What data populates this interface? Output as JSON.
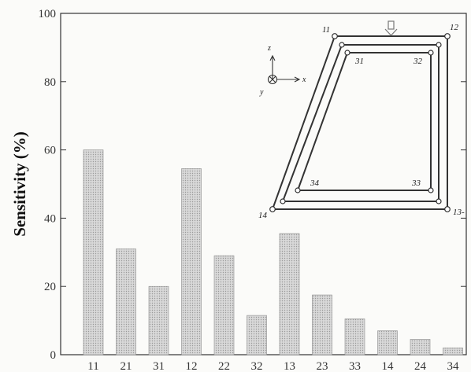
{
  "chart_data": {
    "type": "bar",
    "categories": [
      "11",
      "21",
      "31",
      "12",
      "22",
      "32",
      "13",
      "23",
      "33",
      "14",
      "24",
      "34"
    ],
    "values": [
      60,
      31,
      20,
      54.5,
      29,
      11.5,
      35.5,
      17.5,
      10.5,
      7,
      4.5,
      2
    ],
    "ylabel": "Sensitivity (%)",
    "ylim": [
      0,
      100
    ],
    "yticks": [
      "0",
      "20",
      "40",
      "60",
      "80",
      "100"
    ],
    "grid": false,
    "bar_color": "#cfcfcf",
    "inset": {
      "node_labels": [
        "11",
        "12",
        "31",
        "32",
        "34",
        "33",
        "14",
        "13-"
      ],
      "axis_letters": {
        "z": "z",
        "x": "x",
        "y": "y"
      }
    }
  }
}
